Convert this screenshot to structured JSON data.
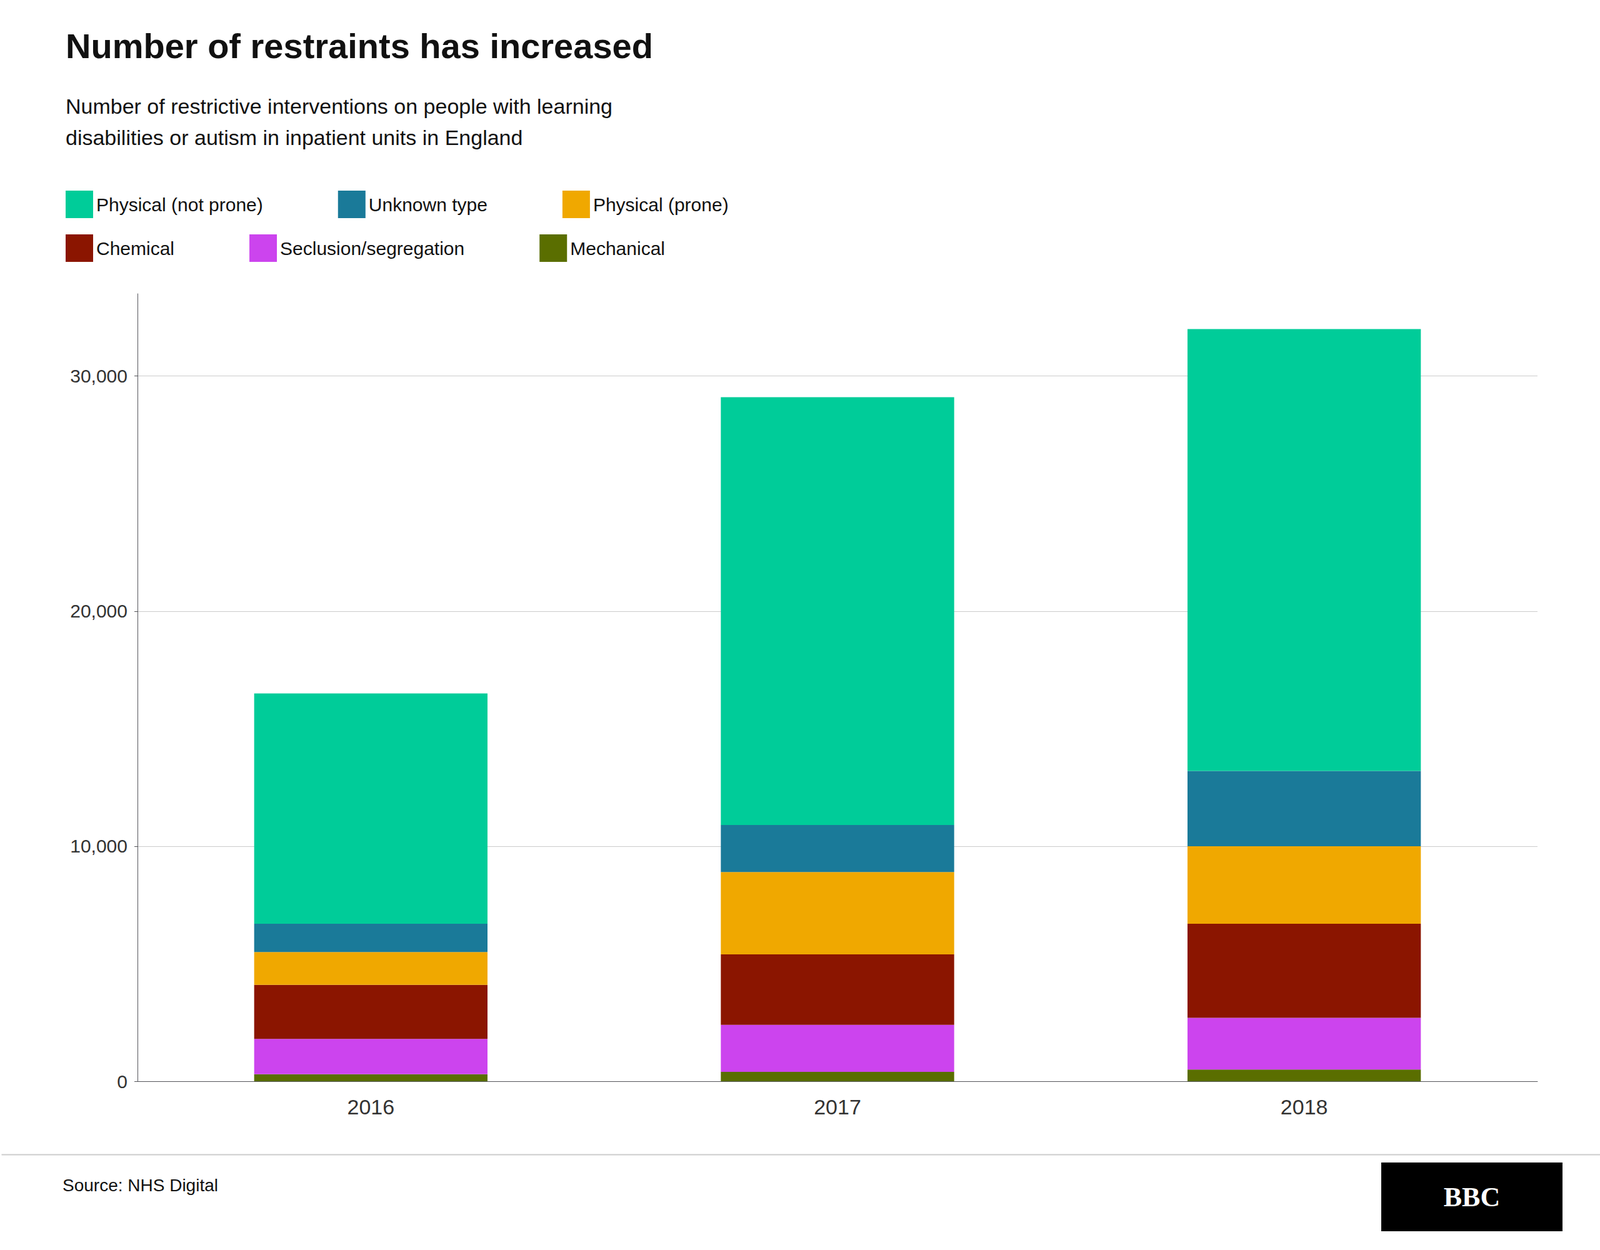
{
  "chart_data": {
    "type": "bar",
    "title": "Number of restraints has increased",
    "subtitle": "Number of restrictive interventions on people with learning\ndisabilities or autism in inpatient units in England",
    "categories": [
      "2016",
      "2017",
      "2018"
    ],
    "series": [
      {
        "name": "Mechanical",
        "color": "#5a6e00",
        "values": [
          300,
          400,
          500
        ]
      },
      {
        "name": "Seclusion/segregation",
        "color": "#cc44ee",
        "values": [
          1500,
          2000,
          2200
        ]
      },
      {
        "name": "Chemical",
        "color": "#8b1500",
        "values": [
          2300,
          3000,
          4000
        ]
      },
      {
        "name": "Physical (prone)",
        "color": "#f0a800",
        "values": [
          1400,
          3500,
          3300
        ]
      },
      {
        "name": "Unknown type",
        "color": "#1a7a99",
        "values": [
          1200,
          2000,
          3200
        ]
      },
      {
        "name": "Physical (not prone)",
        "color": "#00cc99",
        "values": [
          9800,
          18200,
          18800
        ]
      }
    ],
    "stacked": true,
    "ylim": [
      0,
      33500
    ],
    "yticks": [
      0,
      {
        "value": 10000,
        "label": "10,000"
      },
      {
        "value": 20000,
        "label": "20,000"
      },
      {
        "value": 30000,
        "label": "30,000"
      }
    ],
    "grid": true,
    "legend": "top",
    "annotations": [
      "Source: NHS Digital",
      "BBC"
    ]
  }
}
